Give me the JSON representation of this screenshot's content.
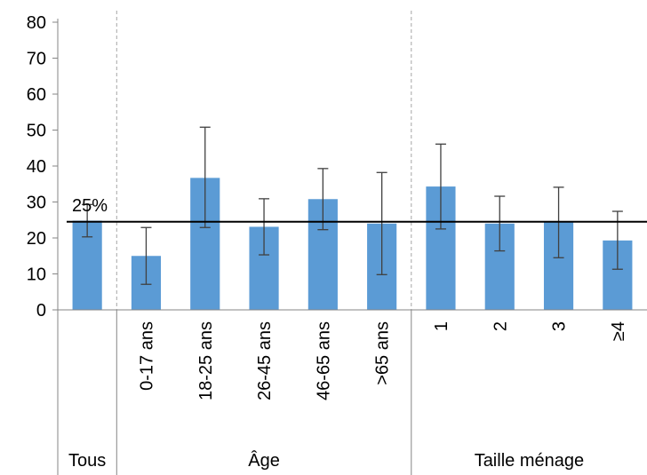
{
  "chart_data": {
    "type": "bar",
    "title": "",
    "xlabel": "",
    "ylabel": "",
    "ylim": [
      0,
      80
    ],
    "yticks": [
      0,
      10,
      20,
      30,
      40,
      50,
      60,
      70,
      80
    ],
    "grid": false,
    "legend": "none",
    "bar_color": "#5b9bd5",
    "error_bar_color": "#404040",
    "reference_line": {
      "value": 24.5,
      "label": "25%",
      "color": "#000000"
    },
    "groups": [
      {
        "label": "Tous",
        "categories": [
          ""
        ]
      },
      {
        "label": "Âge",
        "categories": [
          "0-17 ans",
          "18-25 ans",
          "26-45 ans",
          "46-65 ans",
          ">65 ans"
        ]
      },
      {
        "label": "Taille ménage",
        "categories": [
          "1",
          "2",
          "3",
          "≥4"
        ]
      }
    ],
    "categories": [
      "",
      "0-17 ans",
      "18-25 ans",
      "26-45 ans",
      "46-65 ans",
      ">65 ans",
      "1",
      "2",
      "3",
      "≥4"
    ],
    "values": [
      24.8,
      15.0,
      36.7,
      23.1,
      30.8,
      24.0,
      34.3,
      24.0,
      24.5,
      19.3
    ],
    "error_low": [
      20.3,
      7.1,
      22.9,
      15.3,
      22.3,
      9.8,
      22.5,
      16.4,
      14.5,
      11.3
    ],
    "error_high": [
      29.3,
      22.9,
      50.8,
      30.9,
      39.3,
      38.2,
      46.1,
      31.6,
      34.1,
      27.4
    ]
  }
}
